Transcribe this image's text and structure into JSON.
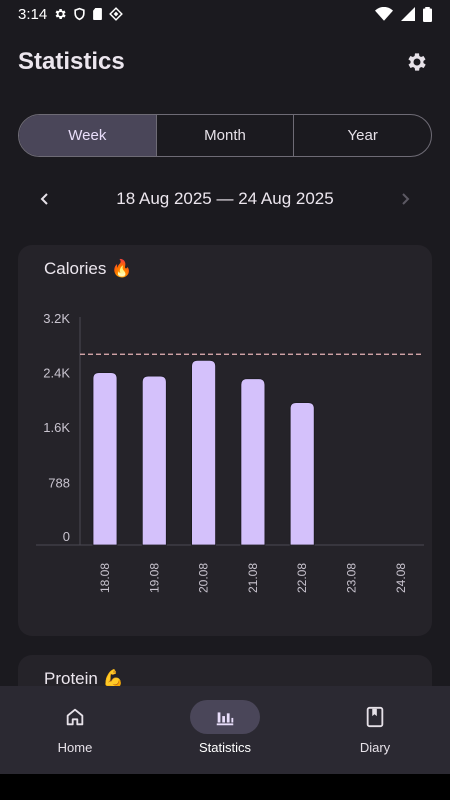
{
  "status_bar": {
    "time": "3:14"
  },
  "header": {
    "title": "Statistics"
  },
  "tabs": [
    {
      "label": "Week",
      "active": true
    },
    {
      "label": "Month",
      "active": false
    },
    {
      "label": "Year",
      "active": false
    }
  ],
  "date_nav": {
    "range": "18 Aug 2025 — 24 Aug 2025"
  },
  "calories_card": {
    "title": "Calories 🔥"
  },
  "protein_card": {
    "title": "Protein 💪"
  },
  "chart_data": {
    "type": "bar",
    "categories": [
      "18.08",
      "19.08",
      "20.08",
      "21.08",
      "22.08",
      "23.08",
      "24.08"
    ],
    "values": [
      2530,
      2480,
      2710,
      2440,
      2090,
      null,
      null
    ],
    "yticks": [
      0,
      788,
      1600,
      2400,
      3200
    ],
    "ytick_labels": [
      "0",
      "788",
      "1.6K",
      "2.4K",
      "3.2K"
    ],
    "ylim": [
      0,
      3200
    ],
    "target_line": 2800,
    "bar_color": "#d4c1fb",
    "target_color": "#e8b4b8"
  },
  "bottom_nav": [
    {
      "label": "Home",
      "icon": "home-icon",
      "active": false
    },
    {
      "label": "Statistics",
      "icon": "chart-icon",
      "active": true
    },
    {
      "label": "Diary",
      "icon": "book-icon",
      "active": false
    }
  ]
}
